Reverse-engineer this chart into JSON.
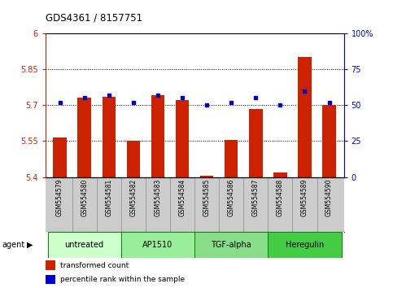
{
  "title": "GDS4361 / 8157751",
  "samples": [
    "GSM554579",
    "GSM554580",
    "GSM554581",
    "GSM554582",
    "GSM554583",
    "GSM554584",
    "GSM554585",
    "GSM554586",
    "GSM554587",
    "GSM554588",
    "GSM554589",
    "GSM554590"
  ],
  "bar_values": [
    5.565,
    5.73,
    5.735,
    5.55,
    5.74,
    5.72,
    5.405,
    5.555,
    5.685,
    5.42,
    5.9,
    5.7
  ],
  "percentile_values": [
    52,
    55,
    57,
    52,
    57,
    55,
    50,
    52,
    55,
    50,
    60,
    52
  ],
  "ylim_left": [
    5.4,
    6.0
  ],
  "ylim_right": [
    0,
    100
  ],
  "yticks_left": [
    5.4,
    5.55,
    5.7,
    5.85,
    6.0
  ],
  "yticks_right": [
    0,
    25,
    50,
    75,
    100
  ],
  "ytick_labels_left": [
    "5.4",
    "5.55",
    "5.7",
    "5.85",
    "6"
  ],
  "ytick_labels_right": [
    "0",
    "25",
    "50",
    "75",
    "100%"
  ],
  "hlines": [
    5.55,
    5.7,
    5.85
  ],
  "bar_color": "#cc2200",
  "dot_color": "#0000cc",
  "bar_bottom": 5.4,
  "groups": [
    {
      "label": "untreated",
      "start": 0,
      "end": 3,
      "color": "#ccffcc"
    },
    {
      "label": "AP1510",
      "start": 3,
      "end": 6,
      "color": "#99ee99"
    },
    {
      "label": "TGF-alpha",
      "start": 6,
      "end": 9,
      "color": "#88dd88"
    },
    {
      "label": "Heregulin",
      "start": 9,
      "end": 12,
      "color": "#44cc44"
    }
  ],
  "legend_bar_label": "transformed count",
  "legend_dot_label": "percentile rank within the sample",
  "fig_bg": "#ffffff",
  "sample_bg": "#cccccc",
  "group_border_color": "#008800"
}
